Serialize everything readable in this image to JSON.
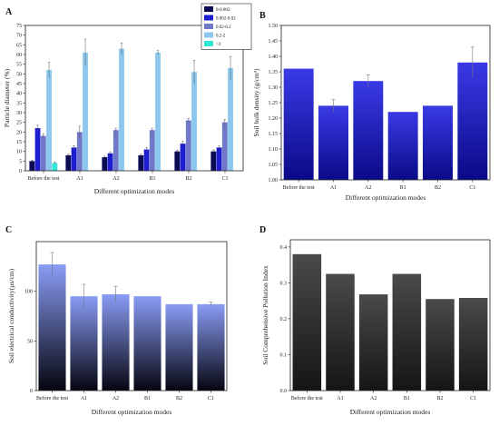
{
  "chart_data": [
    {
      "id": "A",
      "type": "bar",
      "panel_label": "A",
      "title": "",
      "xlabel": "Different optimization modes",
      "ylabel": "Particle diameter (%)",
      "ylim": [
        0,
        75
      ],
      "yticks": [
        0,
        5,
        10,
        15,
        20,
        25,
        30,
        35,
        40,
        45,
        50,
        55,
        60,
        65,
        70,
        75
      ],
      "grid": false,
      "legend": "top-right",
      "categories": [
        "Before the test",
        "A1",
        "A2",
        "B1",
        "B2",
        "C1"
      ],
      "series": [
        {
          "name": "0-0.002",
          "color": "#0a0a55",
          "values": [
            5,
            8,
            7,
            8,
            10,
            10
          ],
          "errors": [
            0.5,
            0.6,
            0.5,
            0.6,
            0.7,
            0.8
          ]
        },
        {
          "name": "0.002-0.02",
          "color": "#1c1cd0",
          "values": [
            22,
            12,
            9,
            11,
            14,
            12
          ],
          "errors": [
            1.5,
            1.0,
            0.8,
            0.9,
            1.2,
            0.8
          ]
        },
        {
          "name": "0.02-0.2",
          "color": "#7078c8",
          "values": [
            18,
            20,
            21,
            21,
            26,
            25
          ],
          "errors": [
            1.0,
            3.0,
            1.0,
            1.0,
            1.0,
            1.5
          ]
        },
        {
          "name": "0.2-2",
          "color": "#8cc8ee",
          "values": [
            52,
            61,
            63,
            61,
            51,
            53
          ],
          "errors": [
            4.0,
            7.0,
            3.0,
            1.0,
            6.0,
            6.0
          ]
        },
        {
          "name": ">2",
          "color": "#30e8d8",
          "values": [
            4,
            0,
            0,
            0,
            0,
            0
          ],
          "errors": [
            0.5,
            0,
            0,
            0,
            0,
            0
          ]
        }
      ]
    },
    {
      "id": "B",
      "type": "bar",
      "panel_label": "B",
      "title": "",
      "xlabel": "Different optimization modes",
      "ylabel": "Soil bulk density (g/cm³)",
      "ylim": [
        1.0,
        1.5
      ],
      "yticks": [
        "1.00",
        "1.05",
        "1.10",
        "1.15",
        "1.20",
        "1.25",
        "1.30",
        "1.35",
        "1.40",
        "1.45",
        "1.50"
      ],
      "grid": false,
      "categories": [
        "Before the test",
        "A1",
        "A2",
        "B1",
        "B2",
        "C1"
      ],
      "values": [
        1.36,
        1.24,
        1.32,
        1.22,
        1.24,
        1.38
      ],
      "errors": [
        0.0,
        0.02,
        0.02,
        0.0,
        0.0,
        0.05
      ],
      "colors": {
        "top": "#3a3ae6",
        "bottom": "#0a0a88"
      }
    },
    {
      "id": "C",
      "type": "bar",
      "panel_label": "C",
      "title": "",
      "xlabel": "Different optimization modes",
      "ylabel": "Soil electrical conductivity(µs/cm)",
      "ylim": [
        0,
        150
      ],
      "yticks": [
        0,
        50,
        100
      ],
      "grid": false,
      "categories": [
        "Before the test",
        "A1",
        "A2",
        "B1",
        "B2",
        "C1"
      ],
      "values": [
        127,
        95,
        97,
        95,
        87,
        87
      ],
      "errors": [
        12,
        12,
        8,
        0,
        0,
        2
      ],
      "colors": {
        "top": "#8a9cf5",
        "bottom": "#050510"
      }
    },
    {
      "id": "D",
      "type": "bar",
      "panel_label": "D",
      "title": "",
      "xlabel": "Different optimization modes",
      "ylabel": "Soil Comprehensive Pollution Index",
      "ylim": [
        0,
        0.42
      ],
      "yticks": [
        "0.0",
        "0.1",
        "0.2",
        "0.3",
        "0.4"
      ],
      "grid": false,
      "categories": [
        "Before the test",
        "A1",
        "A2",
        "B1",
        "B2",
        "C1"
      ],
      "values": [
        0.38,
        0.325,
        0.268,
        0.325,
        0.255,
        0.258
      ],
      "errors": [
        0,
        0,
        0,
        0,
        0,
        0
      ],
      "colors": {
        "top": "#4a4a4a",
        "bottom": "#151515"
      }
    }
  ]
}
